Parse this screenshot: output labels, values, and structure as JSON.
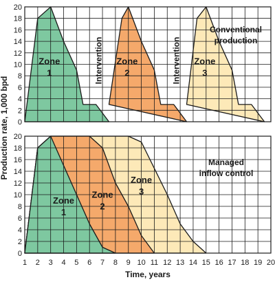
{
  "chart_data": [
    {
      "type": "area",
      "panel": "top",
      "annotation": [
        "Conventional",
        "production"
      ],
      "xlim": [
        1,
        20
      ],
      "ylim": [
        0,
        20
      ],
      "x_ticks": [
        1,
        2,
        3,
        4,
        5,
        6,
        7,
        8,
        9,
        10,
        11,
        12,
        13,
        14,
        15,
        16,
        17,
        18,
        19,
        20
      ],
      "y_ticks": [
        0,
        2,
        4,
        6,
        8,
        10,
        12,
        14,
        16,
        18,
        20
      ],
      "series": [
        {
          "label": [
            "Zone",
            "1"
          ],
          "color": "#7ec8a0",
          "points": [
            [
              1,
              0
            ],
            [
              2,
              18
            ],
            [
              3,
              20
            ],
            [
              4,
              14
            ],
            [
              5,
              9
            ],
            [
              5.5,
              3
            ],
            [
              6.5,
              3
            ],
            [
              7.5,
              0
            ]
          ]
        },
        {
          "label": [
            "Zone",
            "2"
          ],
          "color": "#f5a96b",
          "points": [
            [
              7.5,
              3
            ],
            [
              8.5,
              18
            ],
            [
              9,
              20
            ],
            [
              10,
              14
            ],
            [
              11,
              9
            ],
            [
              11.5,
              3
            ],
            [
              12.5,
              3
            ],
            [
              13.5,
              0
            ]
          ]
        },
        {
          "label": [
            "Zone",
            "3"
          ],
          "color": "#fde9b8",
          "points": [
            [
              13.5,
              3
            ],
            [
              14.3,
              18
            ],
            [
              15,
              20
            ],
            [
              16,
              14
            ],
            [
              17,
              9
            ],
            [
              17.5,
              3
            ],
            [
              18.5,
              3
            ],
            [
              19.5,
              0
            ]
          ]
        }
      ],
      "vertical_labels": [
        {
          "text": "Intervention",
          "x": 6.7
        },
        {
          "text": "Intervention",
          "x": 12.7
        }
      ]
    },
    {
      "type": "area",
      "panel": "bottom",
      "annotation": [
        "Managed",
        "inflow control"
      ],
      "xlim": [
        1,
        20
      ],
      "ylim": [
        0,
        20
      ],
      "x_ticks": [
        1,
        2,
        3,
        4,
        5,
        6,
        7,
        8,
        9,
        10,
        11,
        12,
        13,
        14,
        15,
        16,
        17,
        18,
        19,
        20
      ],
      "y_ticks": [
        0,
        2,
        4,
        6,
        8,
        10,
        12,
        14,
        16,
        18,
        20
      ],
      "series": [
        {
          "label": [
            "Zone",
            "3"
          ],
          "color": "#fde9b8",
          "points": [
            [
              1,
              0
            ],
            [
              2,
              18
            ],
            [
              3,
              20
            ],
            [
              9,
              20
            ],
            [
              10,
              19
            ],
            [
              12,
              10
            ],
            [
              13,
              5
            ],
            [
              14,
              2
            ],
            [
              15,
              0
            ]
          ]
        },
        {
          "label": [
            "Zone",
            "2"
          ],
          "color": "#f5a96b",
          "points": [
            [
              1,
              0
            ],
            [
              2,
              18
            ],
            [
              3,
              20
            ],
            [
              6,
              20
            ],
            [
              7,
              18
            ],
            [
              8,
              12
            ],
            [
              9,
              8
            ],
            [
              10,
              3
            ],
            [
              11,
              0
            ]
          ]
        },
        {
          "label": [
            "Zone",
            "1"
          ],
          "color": "#7ec8a0",
          "points": [
            [
              1,
              0
            ],
            [
              2,
              18
            ],
            [
              3,
              20
            ],
            [
              4,
              15
            ],
            [
              5,
              10
            ],
            [
              6,
              5
            ],
            [
              7,
              1
            ],
            [
              8,
              0
            ]
          ]
        }
      ],
      "zone_label_positions": [
        [
          4,
          8.5
        ],
        [
          7,
          9.5
        ],
        [
          10,
          12
        ]
      ]
    }
  ],
  "axes": {
    "ylabel": "Production rate, 1,000 bpd",
    "xlabel": "Time, years"
  }
}
